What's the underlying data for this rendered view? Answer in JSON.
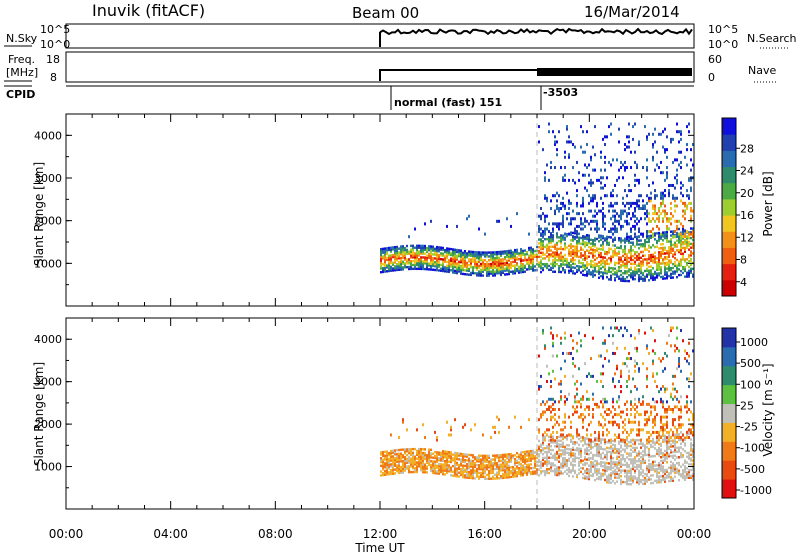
{
  "header": {
    "station": "Inuvik (fitACF)",
    "beam": "Beam 00",
    "date": "16/Mar/2014"
  },
  "strip_nsky": {
    "left_label": "N.Sky",
    "right_label": "N.Search",
    "left_ticks": [
      "10^5",
      "10^0"
    ],
    "right_ticks": [
      "10^5",
      "10^0"
    ]
  },
  "strip_freq": {
    "left_label_1": "Freq.",
    "left_label_2": "[MHz]",
    "right_label": "Nave",
    "left_ticks": [
      "18",
      "8"
    ],
    "right_ticks": [
      "60",
      "0"
    ]
  },
  "cpid": {
    "label": "CPID",
    "mode_1": "normal (fast) 151",
    "mode_2": "-3503"
  },
  "colors": {
    "panel_border": "#000000",
    "dashed_marker": "#bbbbbb"
  },
  "chart_data": [
    {
      "type": "heatmap",
      "title": "",
      "ylabel": "Slant Range [km]",
      "ylim": [
        0,
        4500
      ],
      "y_ticks": [
        "1000",
        "2000",
        "3000",
        "4000"
      ],
      "colorbar_label": "Power [dB]",
      "colorbar_ticks": [
        "28",
        "24",
        "20",
        "16",
        "12",
        "8",
        "4"
      ],
      "colorbar_colors": [
        "#1010dd",
        "#2040b0",
        "#2a6cb0",
        "#2e8c6c",
        "#4caa44",
        "#9cce30",
        "#f2c620",
        "#f29018",
        "#ee6010",
        "#e52010",
        "#cc0000"
      ],
      "data_start_hour": 12.0,
      "data_end_hour": 24.0,
      "mode_change_hour": 18.0
    },
    {
      "type": "heatmap",
      "title": "",
      "ylabel": "Slant Range [km]",
      "ylim": [
        0,
        4500
      ],
      "y_ticks": [
        "1000",
        "2000",
        "3000",
        "4000"
      ],
      "colorbar_label": "Velocity [m s⁻¹]",
      "colorbar_ticks": [
        "1000",
        "500",
        "100",
        "25",
        "-25",
        "-100",
        "-500",
        "-1000"
      ],
      "colorbar_colors": [
        "#2233aa",
        "#2a6cb0",
        "#2e8c6c",
        "#5cc040",
        "#c0c0b8",
        "#f2b028",
        "#f07a18",
        "#e84a10",
        "#e01010"
      ],
      "data_start_hour": 12.0,
      "data_end_hour": 24.0,
      "mode_change_hour": 18.0
    }
  ],
  "x_axis": {
    "label": "Time UT",
    "ticks": [
      "00:00",
      "04:00",
      "08:00",
      "12:00",
      "16:00",
      "20:00",
      "00:00"
    ]
  }
}
